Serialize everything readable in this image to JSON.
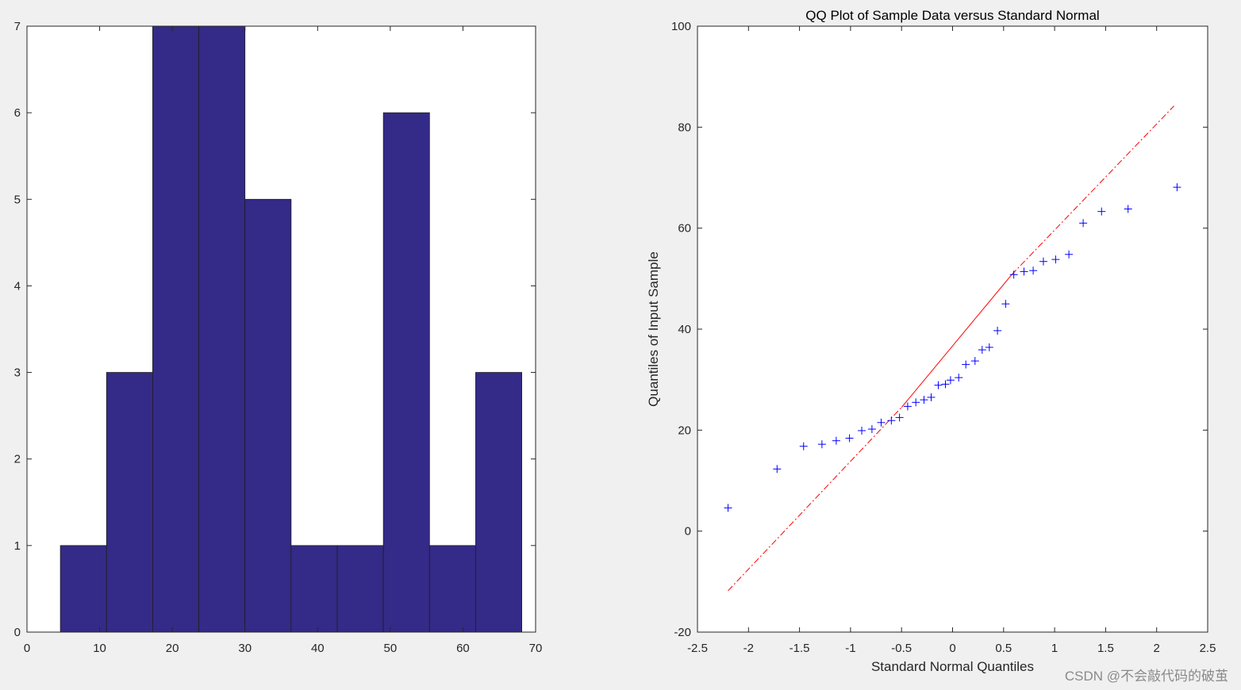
{
  "chart_data": [
    {
      "type": "bar",
      "subtype": "histogram",
      "title": "",
      "xlabel": "",
      "ylabel": "",
      "xlim": [
        0,
        70
      ],
      "ylim": [
        0,
        7
      ],
      "xticks": [
        0,
        10,
        20,
        30,
        40,
        50,
        60,
        70
      ],
      "yticks": [
        0,
        1,
        2,
        3,
        4,
        5,
        6,
        7
      ],
      "bin_edges": [
        4.6,
        10.95,
        17.3,
        23.65,
        30.0,
        36.35,
        42.7,
        49.05,
        55.4,
        61.75,
        68.1
      ],
      "values": [
        1,
        3,
        7,
        7,
        5,
        1,
        1,
        6,
        1,
        3
      ],
      "colors": {
        "bar": "#342a87",
        "edge": "#1e1e1e"
      },
      "grid": false
    },
    {
      "type": "scatter",
      "title": "QQ Plot of Sample Data versus Standard Normal",
      "xlabel": "Standard Normal Quantiles",
      "ylabel": "Quantiles of Input Sample",
      "xlim": [
        -2.5,
        2.5
      ],
      "ylim": [
        -20,
        100
      ],
      "xticks": [
        -2.5,
        -2,
        -1.5,
        -1,
        -0.5,
        0,
        0.5,
        1,
        1.5,
        2,
        2.5
      ],
      "yticks": [
        -20,
        0,
        20,
        40,
        60,
        80,
        100
      ],
      "xtick_labels": [
        "-2.5",
        "-2",
        "-1.5",
        "-1",
        "-0.5",
        "0",
        "0.5",
        "1",
        "1.5",
        "2",
        "2.5"
      ],
      "series": [
        {
          "marker": "+",
          "color": "#0000ff",
          "x": [
            -2.2,
            -1.72,
            -1.46,
            -1.28,
            -1.14,
            -1.01,
            -0.89,
            -0.79,
            -0.7,
            -0.6,
            -0.52,
            -0.44,
            -0.36,
            -0.28,
            -0.21,
            -0.14,
            -0.07,
            -0.02,
            0.06,
            0.13,
            0.22,
            0.29,
            0.36,
            0.44,
            0.52,
            0.6,
            0.7,
            0.79,
            0.89,
            1.01,
            1.14,
            1.28,
            1.46,
            1.72,
            2.2
          ],
          "y": [
            4.6,
            12.3,
            16.8,
            17.2,
            17.9,
            18.4,
            19.9,
            20.2,
            21.5,
            21.9,
            22.5,
            24.7,
            25.5,
            26.0,
            26.5,
            28.9,
            29.1,
            29.9,
            30.4,
            33.0,
            33.7,
            35.9,
            36.4,
            39.7,
            45.0,
            50.8,
            51.4,
            51.6,
            53.4,
            53.8,
            54.8,
            61.0,
            63.3,
            63.8,
            68.1
          ]
        }
      ],
      "reference_lines": [
        {
          "style": "solid",
          "color": "#ff0000",
          "x": [
            -0.5,
            0.58
          ],
          "y": [
            24.5,
            50.8
          ]
        },
        {
          "style": "dashdot",
          "color": "#ff0000",
          "x": [
            -2.2,
            -0.5
          ],
          "y": [
            -11.8,
            24.5
          ]
        },
        {
          "style": "dashdot",
          "color": "#ff0000",
          "x": [
            0.58,
            2.17
          ],
          "y": [
            50.8,
            84.2
          ]
        }
      ],
      "grid": false
    }
  ],
  "watermark": "CSDN @不会敲代码的破茧"
}
